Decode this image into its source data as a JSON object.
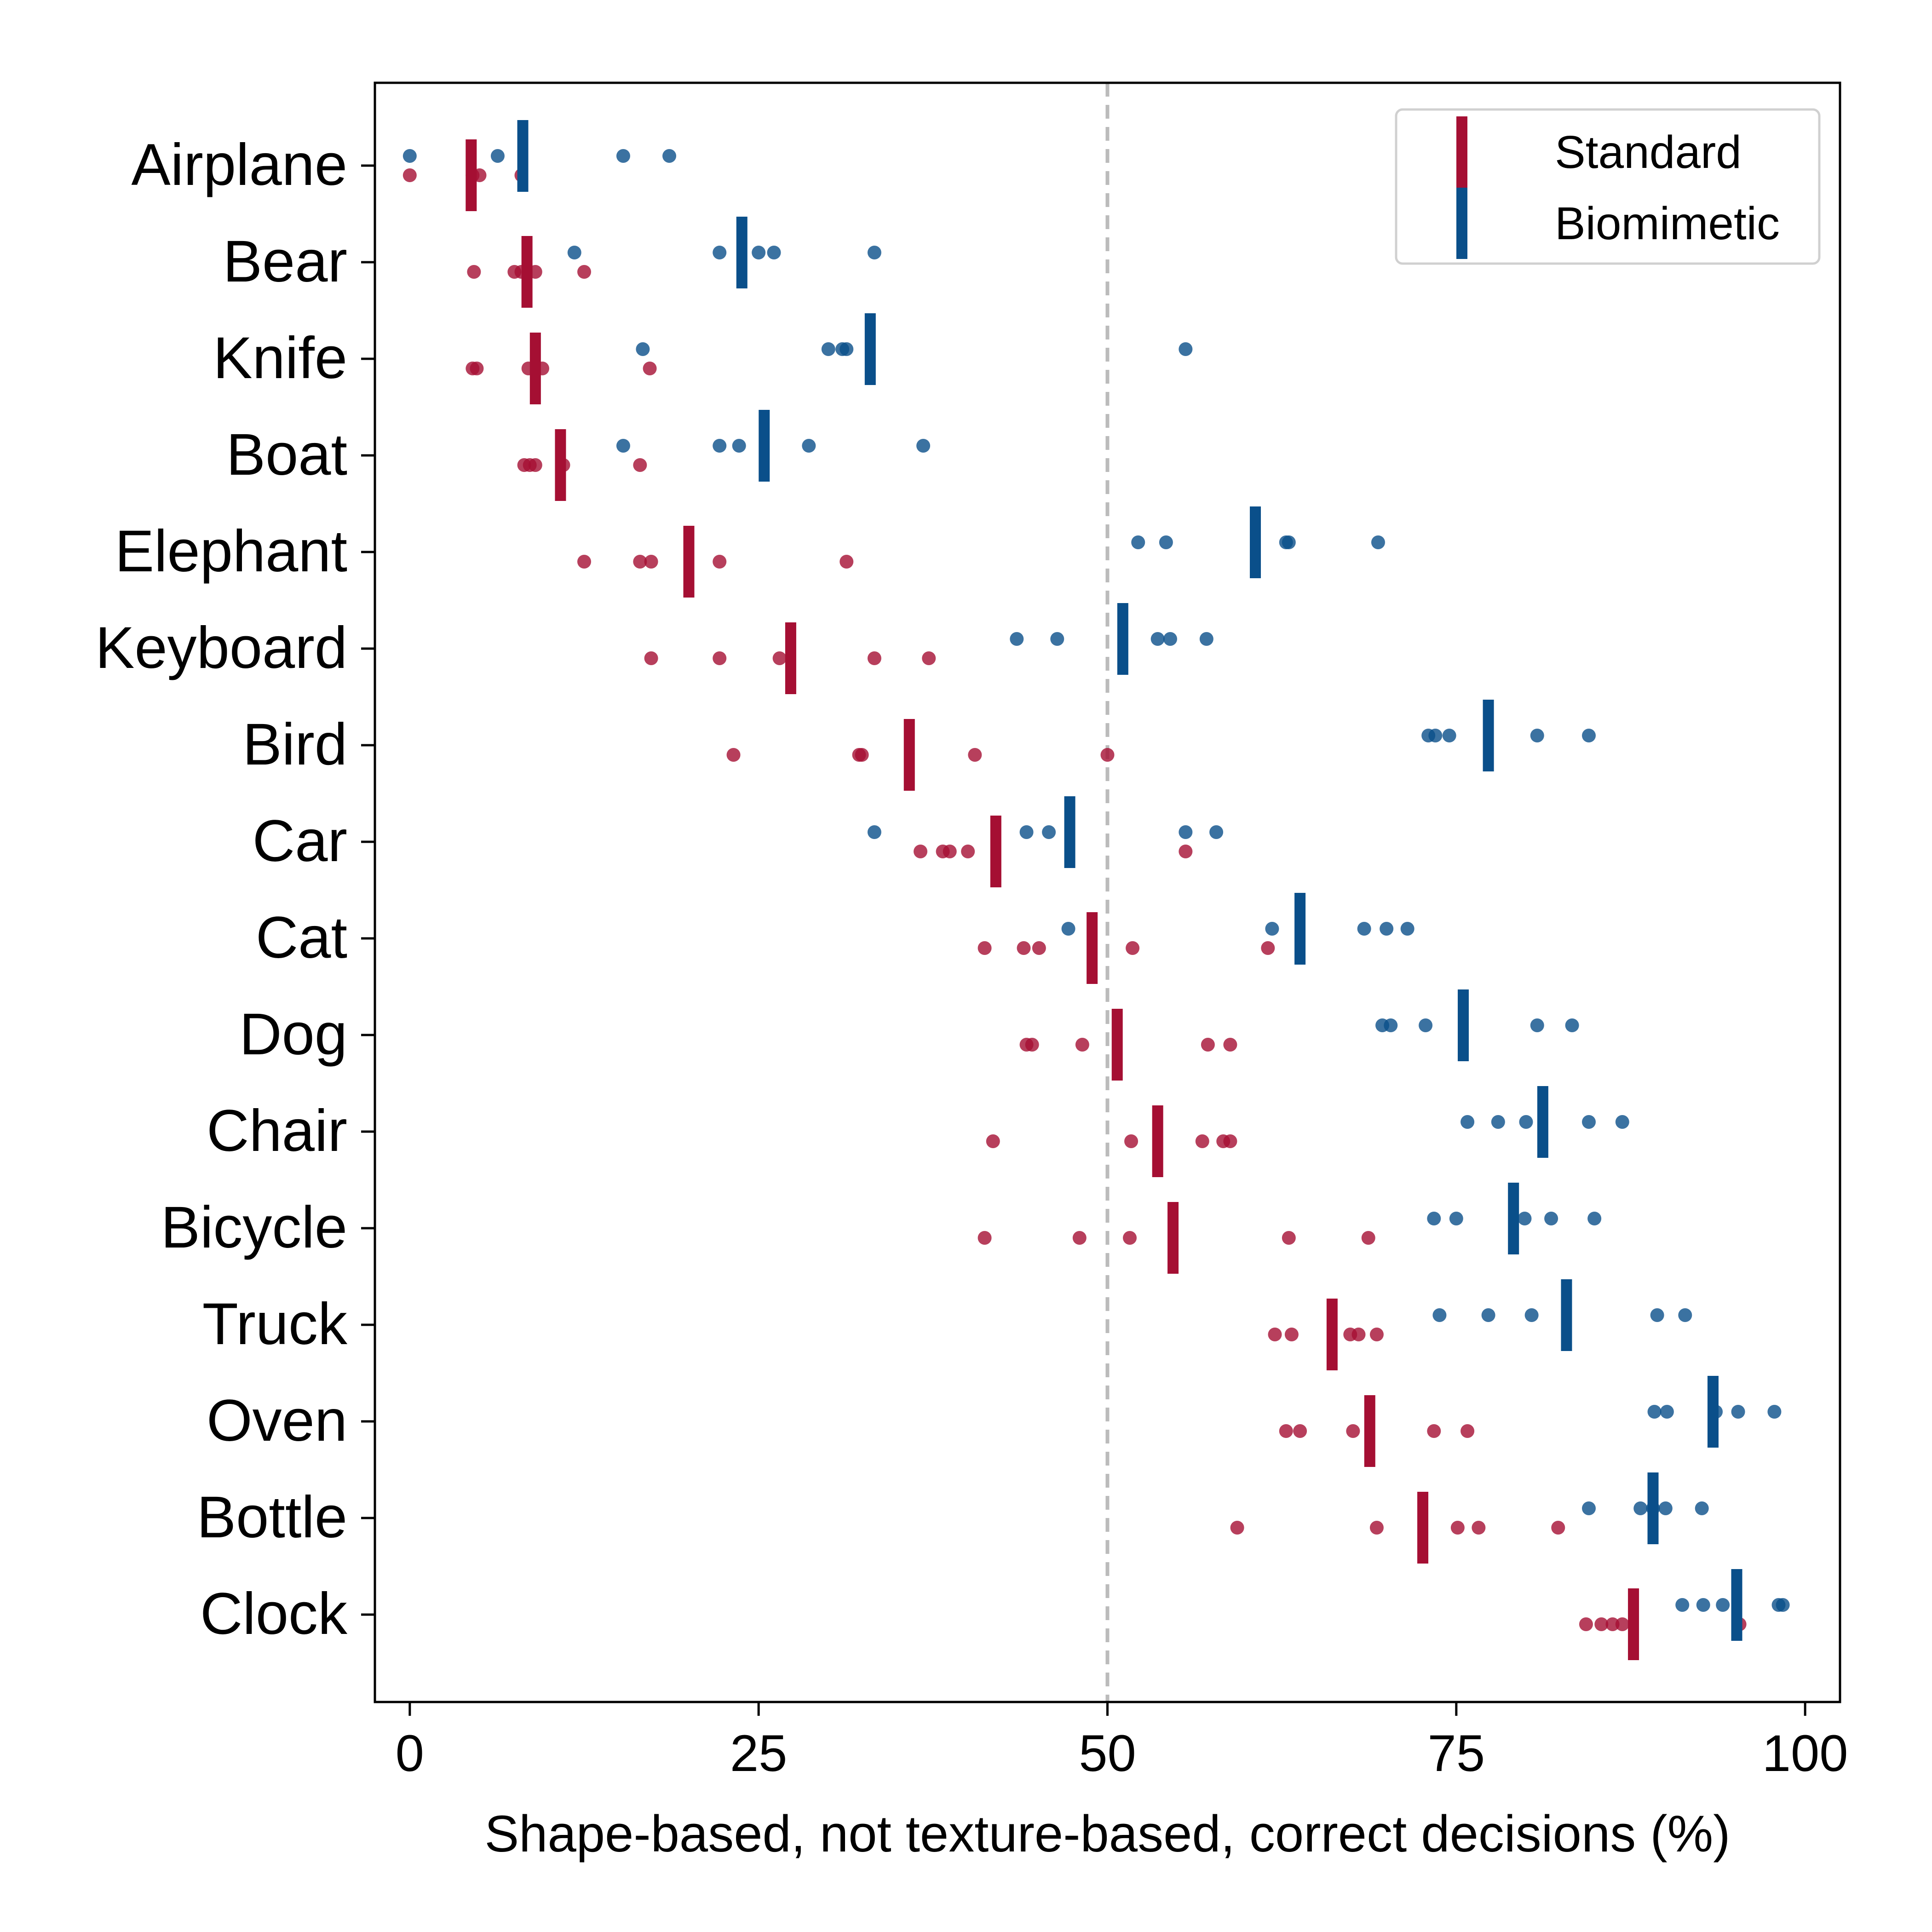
{
  "chart_data": {
    "type": "scatter",
    "title": "",
    "xlabel": "Shape-based, not texture-based, correct decisions (%)",
    "ylabel": "",
    "xlim": [
      -2.5,
      102.5
    ],
    "xticks": [
      "0",
      "25",
      "50",
      "75",
      "100"
    ],
    "reference_line": {
      "x": 50,
      "style": "dashed",
      "color": "#bbbbbb"
    },
    "grid": false,
    "legend": {
      "position": "top-right",
      "entries": [
        "Standard",
        "Biomimetic"
      ]
    },
    "colors": {
      "standard": "#a50f33",
      "biomimetic": "#0a4f8a",
      "axis": "#000000"
    },
    "categories": [
      "Airplane",
      "Bear",
      "Knife",
      "Boat",
      "Elephant",
      "Keyboard",
      "Bird",
      "Car",
      "Cat",
      "Dog",
      "Chair",
      "Bicycle",
      "Truck",
      "Oven",
      "Bottle",
      "Clock"
    ],
    "series": [
      {
        "name": "Standard",
        "means": [
          4.4,
          8.4,
          9.0,
          10.8,
          20.0,
          27.3,
          35.8,
          42.0,
          48.9,
          50.7,
          53.6,
          54.7,
          66.1,
          68.8,
          72.6,
          87.7
        ],
        "points": [
          [
            0,
            4.5,
            5.0,
            8.0
          ],
          [
            4.6,
            7.5,
            8.0,
            9.0,
            12.5
          ],
          [
            4.5,
            4.8,
            8.5,
            9.5,
            17.2
          ],
          [
            8.2,
            8.6,
            9.0,
            11.0,
            16.5
          ],
          [
            12.5,
            16.5,
            17.3,
            22.2,
            31.3
          ],
          [
            17.3,
            22.2,
            26.5,
            33.3,
            37.2
          ],
          [
            23.2,
            32.2,
            32.4,
            40.5,
            50.0
          ],
          [
            36.6,
            38.2,
            38.7,
            40.0,
            55.6
          ],
          [
            41.2,
            44.0,
            45.1,
            51.8,
            61.5
          ],
          [
            44.2,
            44.6,
            48.2,
            57.2,
            58.8
          ],
          [
            41.8,
            51.7,
            56.8,
            58.3,
            58.8
          ],
          [
            41.2,
            48.0,
            51.6,
            63.0,
            68.7
          ],
          [
            62.0,
            63.2,
            67.4,
            68.0,
            69.3
          ],
          [
            62.8,
            63.8,
            67.6,
            73.4,
            75.8
          ],
          [
            59.3,
            69.3,
            75.1,
            76.6,
            82.3
          ],
          [
            84.3,
            85.4,
            86.2,
            86.9,
            95.3
          ]
        ]
      },
      {
        "name": "Biomimetic",
        "means": [
          8.1,
          23.8,
          33.0,
          25.4,
          60.6,
          51.1,
          77.3,
          47.3,
          63.8,
          75.5,
          81.2,
          79.1,
          82.9,
          93.4,
          89.1,
          95.1
        ],
        "points": [
          [
            0,
            6.3,
            15.3,
            18.6
          ],
          [
            11.8,
            22.2,
            25.0,
            26.1,
            33.3
          ],
          [
            16.7,
            30.0,
            31.0,
            31.3,
            55.6
          ],
          [
            15.3,
            22.2,
            23.6,
            28.6,
            36.8
          ],
          [
            52.2,
            54.2,
            62.8,
            63.0,
            69.4
          ],
          [
            43.5,
            46.4,
            53.6,
            54.5,
            57.1
          ],
          [
            73.0,
            73.5,
            74.5,
            80.8,
            84.5
          ],
          [
            33.3,
            44.2,
            45.8,
            55.6,
            57.8
          ],
          [
            47.2,
            61.8,
            68.4,
            70.0,
            71.5
          ],
          [
            69.7,
            70.3,
            72.8,
            80.8,
            83.3
          ],
          [
            75.8,
            78.0,
            80.0,
            84.5,
            86.9
          ],
          [
            73.4,
            75.0,
            79.9,
            81.8,
            84.9
          ],
          [
            73.8,
            77.3,
            80.4,
            89.4,
            91.4
          ],
          [
            89.2,
            90.1,
            93.6,
            95.2,
            97.8
          ],
          [
            84.5,
            88.2,
            89.1,
            90.0,
            92.6
          ],
          [
            91.2,
            92.7,
            94.1,
            98.1,
            98.4
          ]
        ]
      }
    ]
  }
}
